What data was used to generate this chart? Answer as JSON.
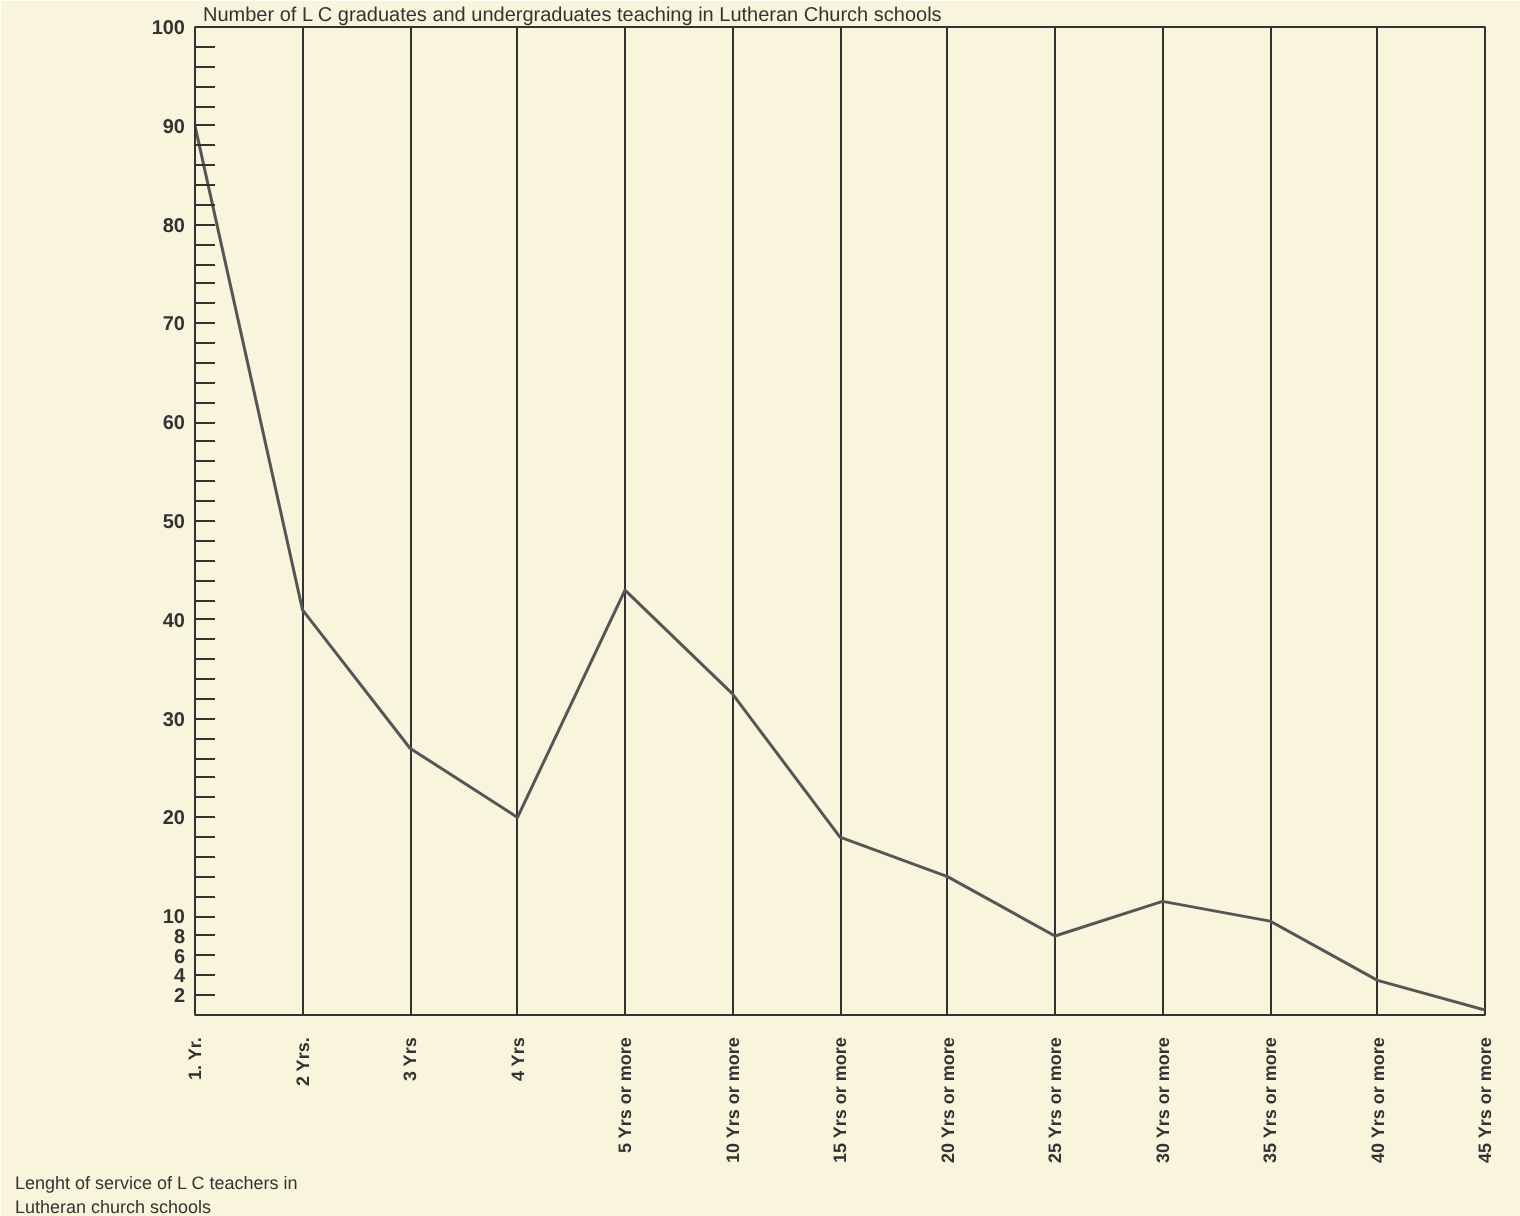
{
  "chart_data": {
    "type": "line",
    "ylabel": "Number of L C graduates and undergraduates teaching in Lutheran Church schools",
    "xlabel": "Lenght of service of L C teachers in Lutheran church schools",
    "categories": [
      "1. Yr.",
      "2 Yrs.",
      "3 Yrs",
      "4 Yrs",
      "5 Yrs or more",
      "10 Yrs or more",
      "15 Yrs or more",
      "20 Yrs or more",
      "25 Yrs or more",
      "30 Yrs or more",
      "35 Yrs or more",
      "40 Yrs or more",
      "45 Yrs or more"
    ],
    "series": [
      {
        "color": "#555555",
        "values": [
          90,
          41,
          27,
          20,
          43,
          32.5,
          18,
          14,
          8,
          11.5,
          9.5,
          3.5,
          0.5
        ]
      }
    ],
    "ylim": [
      0,
      100
    ],
    "yticks": [
      {
        "value": 0,
        "label": null
      },
      2,
      4,
      6,
      8,
      10,
      {
        "value": 12,
        "label": null
      },
      {
        "value": 14,
        "label": null
      },
      {
        "value": 16,
        "label": null
      },
      {
        "value": 18,
        "label": null
      },
      20,
      {
        "value": 22,
        "label": null
      },
      {
        "value": 24,
        "label": null
      },
      {
        "value": 26,
        "label": null
      },
      {
        "value": 28,
        "label": null
      },
      30,
      {
        "value": 32,
        "label": null
      },
      {
        "value": 34,
        "label": null
      },
      {
        "value": 36,
        "label": null
      },
      {
        "value": 38,
        "label": null
      },
      40,
      {
        "value": 42,
        "label": null
      },
      {
        "value": 44,
        "label": null
      },
      {
        "value": 46,
        "label": null
      },
      {
        "value": 48,
        "label": null
      },
      50,
      {
        "value": 52,
        "label": null
      },
      {
        "value": 54,
        "label": null
      },
      {
        "value": 56,
        "label": null
      },
      {
        "value": 58,
        "label": null
      },
      60,
      {
        "value": 62,
        "label": null
      },
      {
        "value": 64,
        "label": null
      },
      {
        "value": 66,
        "label": null
      },
      {
        "value": 68,
        "label": null
      },
      70,
      {
        "value": 72,
        "label": null
      },
      {
        "value": 74,
        "label": null
      },
      {
        "value": 76,
        "label": null
      },
      {
        "value": 78,
        "label": null
      },
      80,
      {
        "value": 82,
        "label": null
      },
      {
        "value": 84,
        "label": null
      },
      {
        "value": 86,
        "label": null
      },
      {
        "value": 88,
        "label": null
      },
      90,
      {
        "value": 92,
        "label": null
      },
      {
        "value": 94,
        "label": null
      },
      {
        "value": 96,
        "label": null
      },
      {
        "value": 98,
        "label": null
      },
      100
    ],
    "grid": "x",
    "marker": "none",
    "line_style": "solid"
  }
}
